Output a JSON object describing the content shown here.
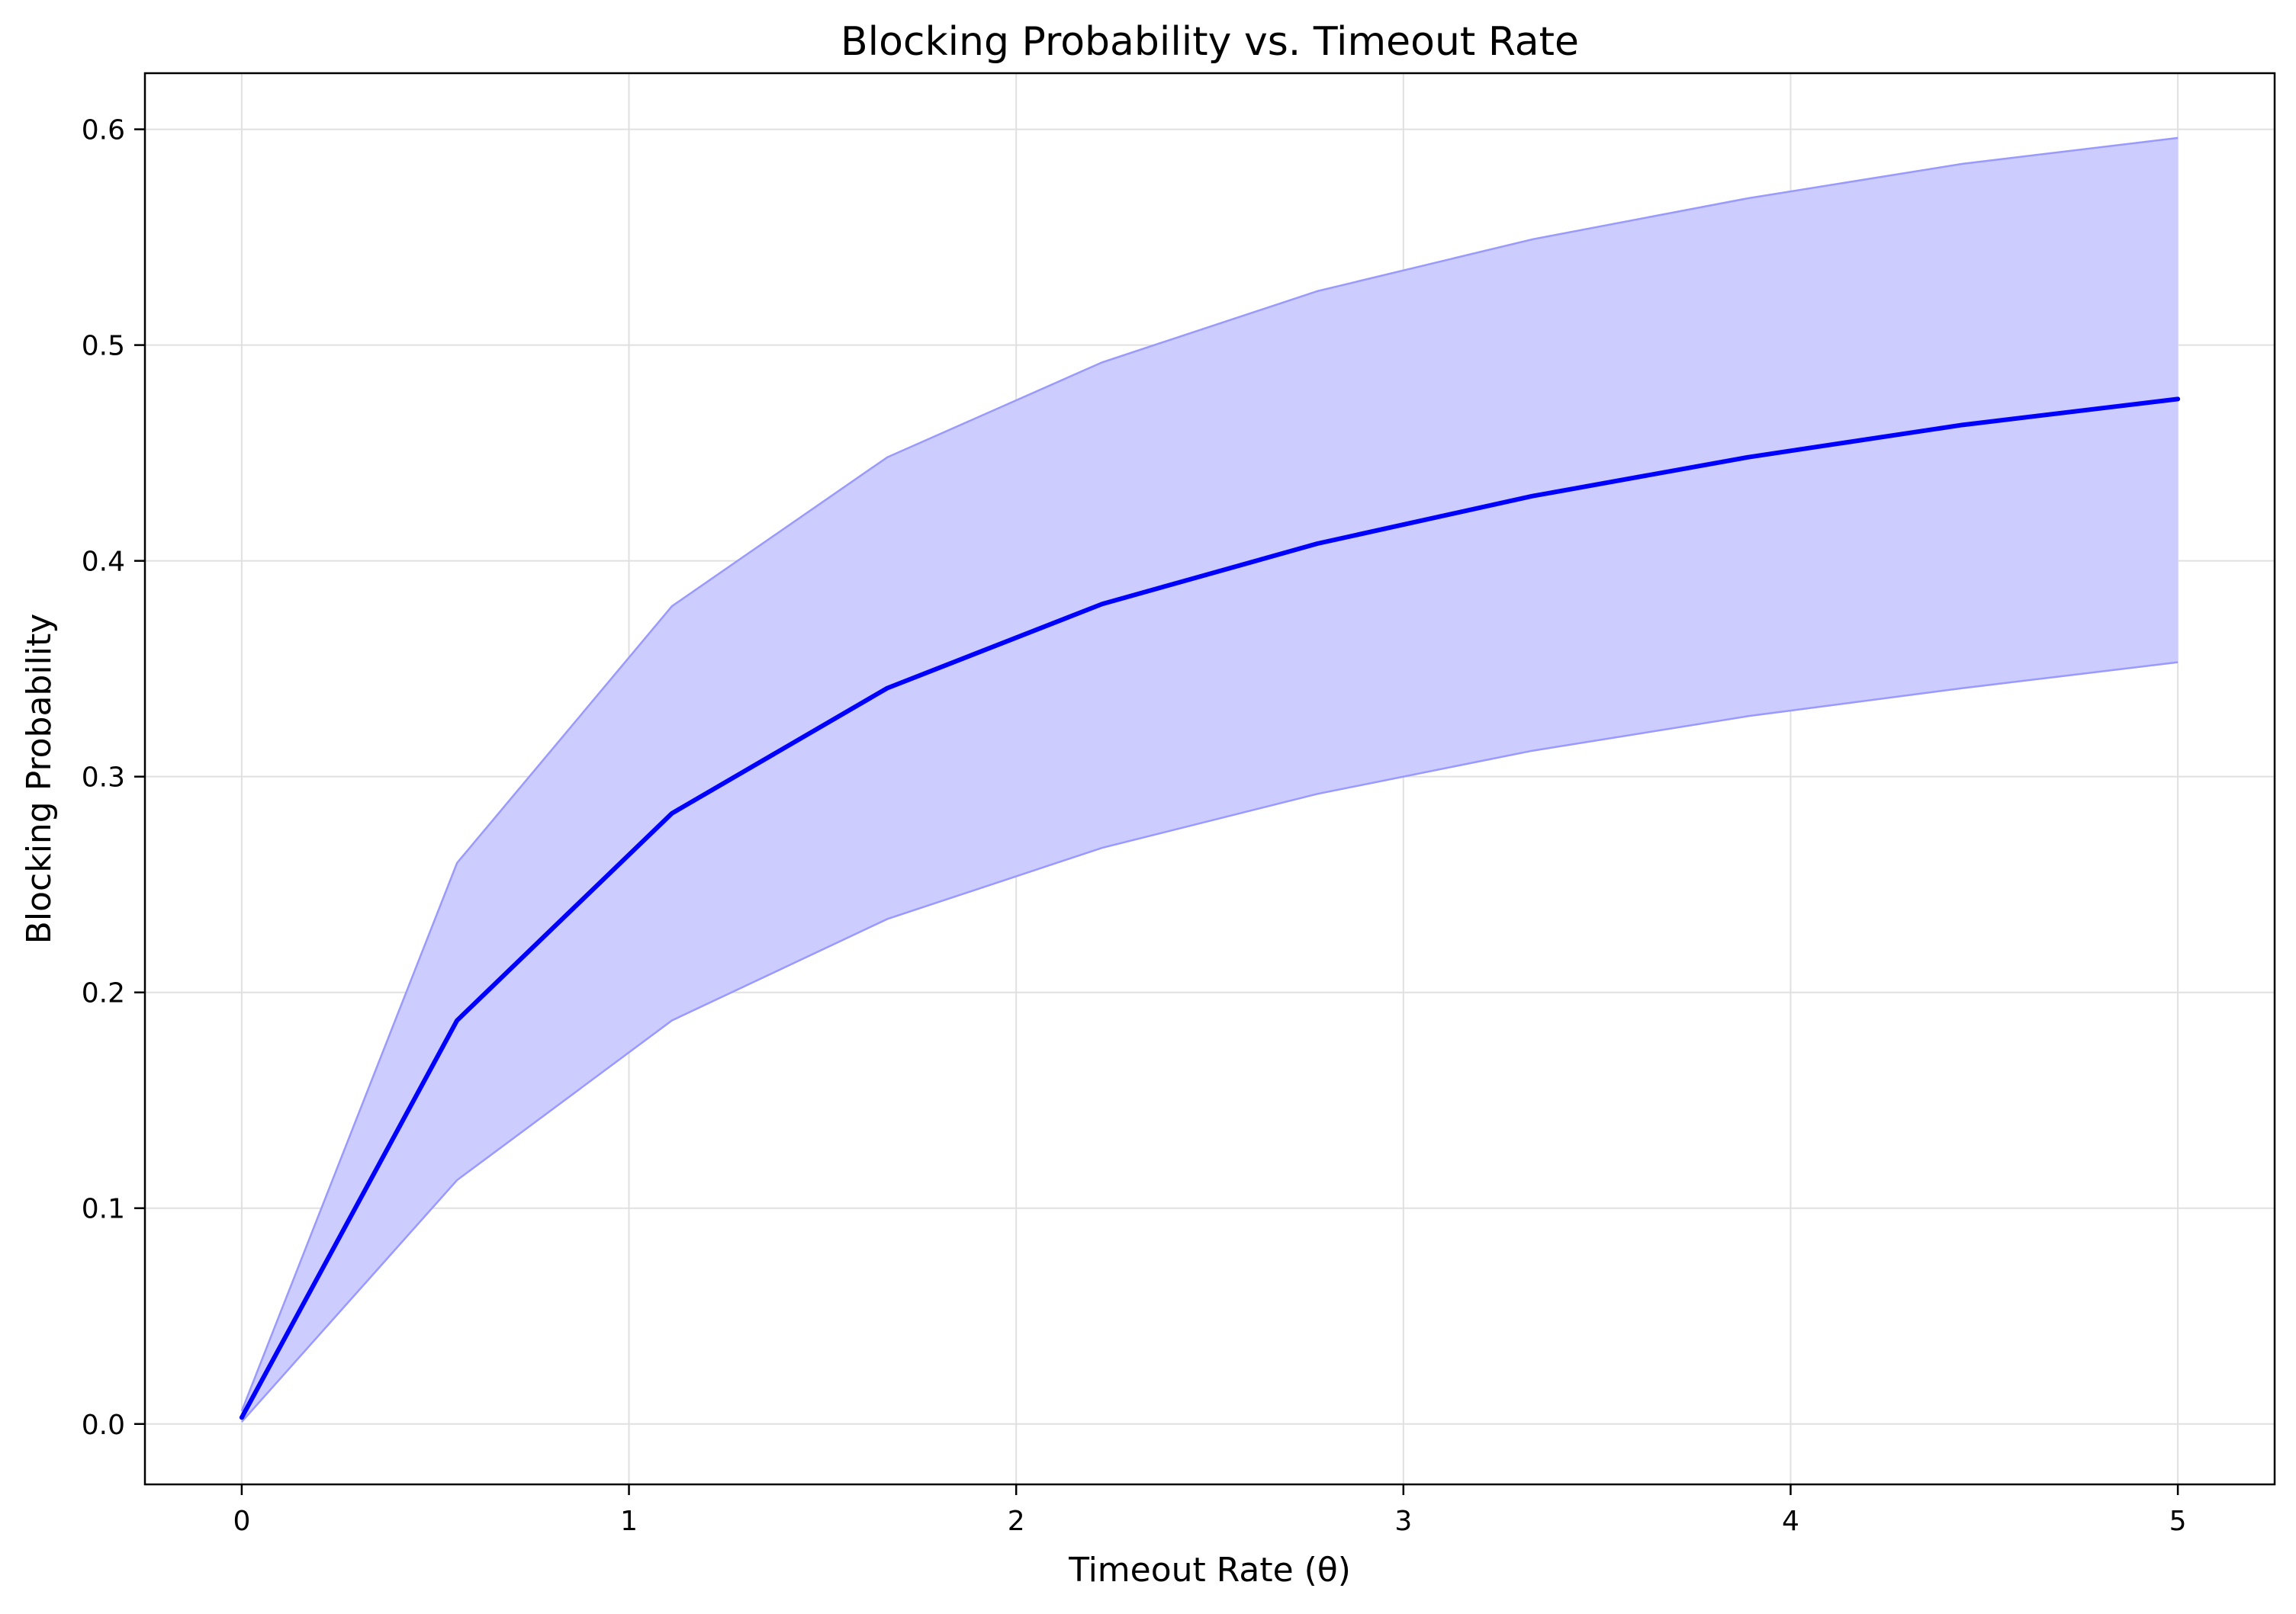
{
  "chart_data": {
    "type": "line",
    "title": "Blocking Probability vs. Timeout Rate",
    "xlabel": "Timeout Rate (θ)",
    "ylabel": "Blocking Probability",
    "xlim": [
      -0.25,
      5.25
    ],
    "ylim": [
      -0.028,
      0.626
    ],
    "x_ticks": [
      {
        "value": 0,
        "label": "0"
      },
      {
        "value": 1,
        "label": "1"
      },
      {
        "value": 2,
        "label": "2"
      },
      {
        "value": 3,
        "label": "3"
      },
      {
        "value": 4,
        "label": "4"
      },
      {
        "value": 5,
        "label": "5"
      }
    ],
    "y_ticks": [
      {
        "value": 0.0,
        "label": "0.0"
      },
      {
        "value": 0.1,
        "label": "0.1"
      },
      {
        "value": 0.2,
        "label": "0.2"
      },
      {
        "value": 0.3,
        "label": "0.3"
      },
      {
        "value": 0.4,
        "label": "0.4"
      },
      {
        "value": 0.5,
        "label": "0.5"
      },
      {
        "value": 0.6,
        "label": "0.6"
      }
    ],
    "grid": true,
    "x": [
      0.0,
      0.556,
      1.111,
      1.667,
      2.222,
      2.778,
      3.333,
      3.889,
      4.444,
      5.0
    ],
    "series": [
      {
        "values": [
          0.003,
          0.187,
          0.283,
          0.341,
          0.38,
          0.408,
          0.43,
          0.448,
          0.463,
          0.475
        ],
        "color": "#0000ff"
      }
    ],
    "band": {
      "lower": [
        0.001,
        0.113,
        0.187,
        0.234,
        0.267,
        0.292,
        0.312,
        0.328,
        0.341,
        0.353
      ],
      "upper": [
        0.006,
        0.26,
        0.379,
        0.448,
        0.492,
        0.525,
        0.549,
        0.568,
        0.584,
        0.596
      ],
      "fill_color": "#ccccff",
      "edge_color": "#9999ff"
    },
    "colors": {
      "grid": "#e0e0e0",
      "axis": "#000000"
    }
  }
}
